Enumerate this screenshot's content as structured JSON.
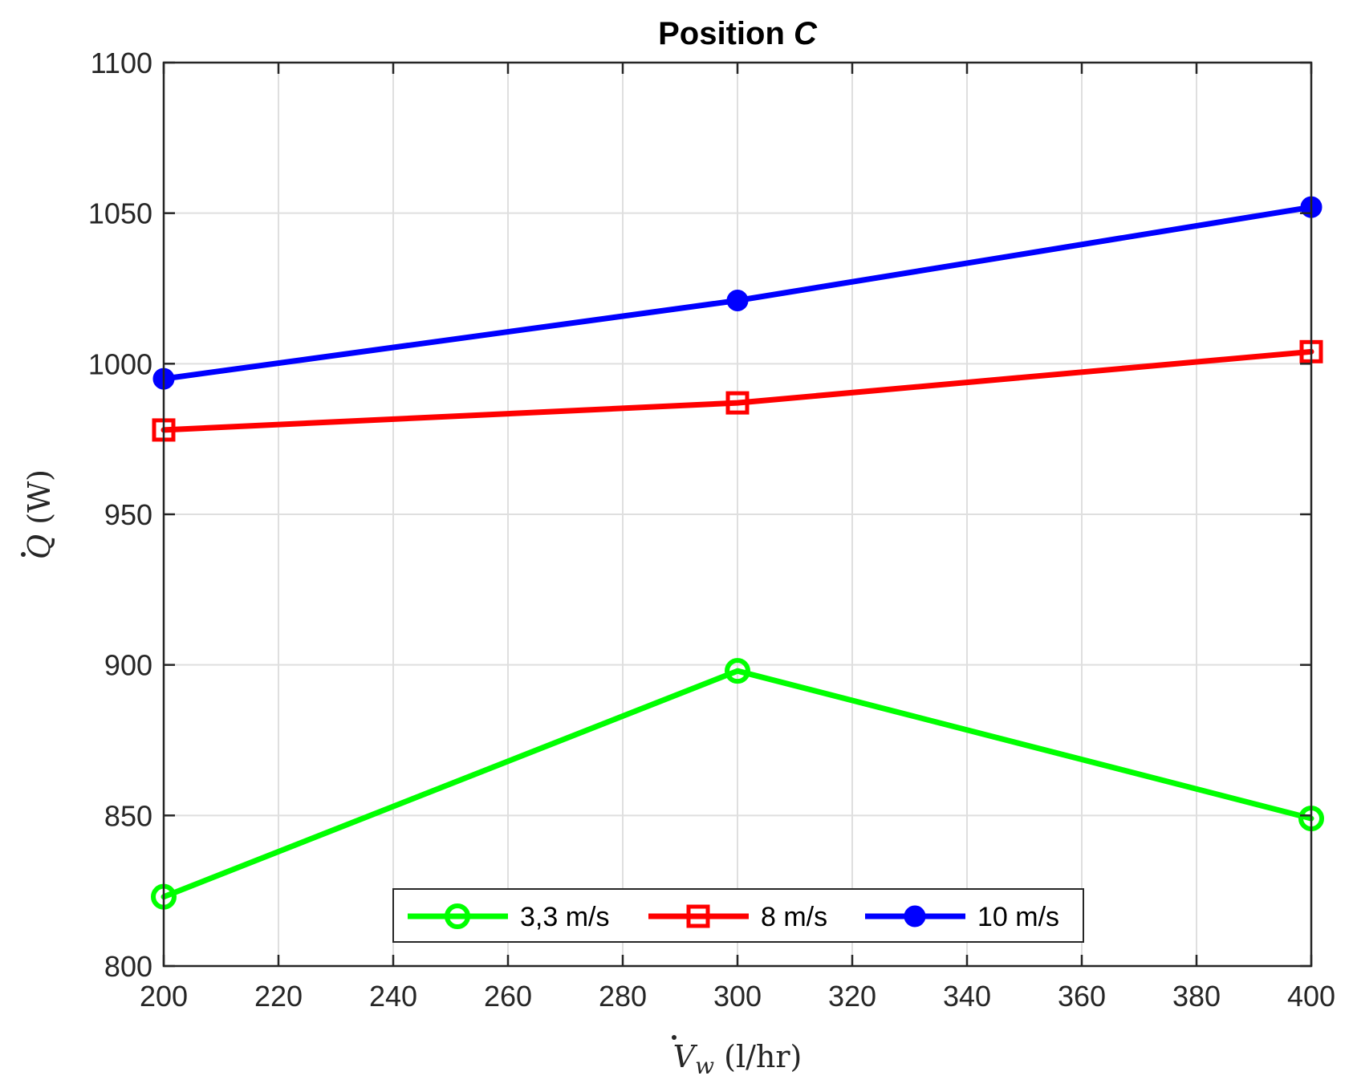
{
  "chart_data": {
    "type": "line",
    "title_prefix": "Position ",
    "title_symbol": "C",
    "xlabel_symbol": "V",
    "xlabel_subscript": "w",
    "xlabel_unit": " (l/hr)",
    "ylabel_symbol": "Q",
    "ylabel_unit": " (W)",
    "xlim": [
      200,
      400
    ],
    "ylim": [
      800,
      1100
    ],
    "xticks": [
      200,
      220,
      240,
      260,
      280,
      300,
      320,
      340,
      360,
      380,
      400
    ],
    "yticks": [
      800,
      850,
      900,
      950,
      1000,
      1050,
      1100
    ],
    "grid": true,
    "legend_placement": "bottom-center",
    "legend_orientation": "horizontal",
    "x": [
      200,
      300,
      400
    ],
    "series": [
      {
        "name": "3,3 m/s",
        "color": "#00ff00",
        "marker": "circle-open",
        "values": [
          823,
          898,
          849
        ]
      },
      {
        "name": "8 m/s",
        "color": "#ff0000",
        "marker": "square-open",
        "values": [
          978,
          987,
          1004
        ]
      },
      {
        "name": "10 m/s",
        "color": "#0000ff",
        "marker": "circle-filled",
        "values": [
          995,
          1021,
          1052
        ]
      }
    ]
  }
}
